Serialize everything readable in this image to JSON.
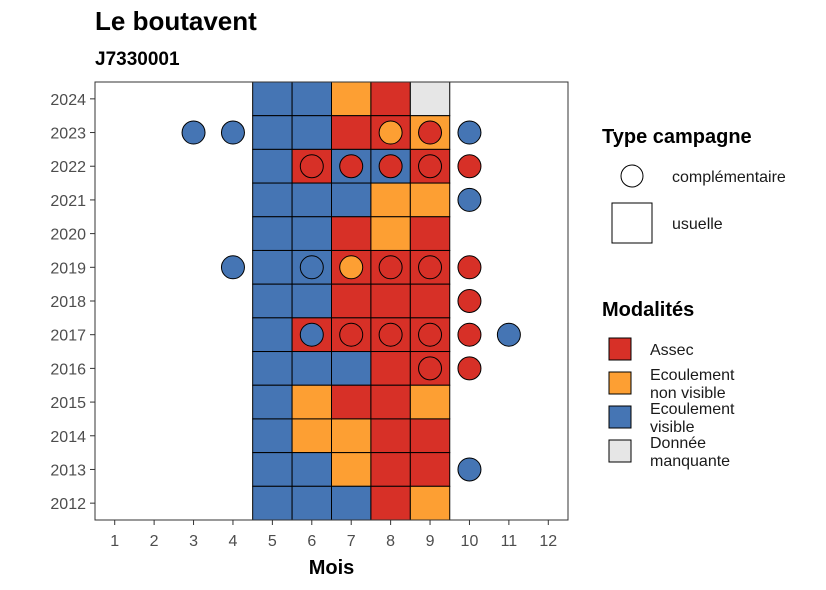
{
  "chart_data": {
    "type": "heatmap",
    "title": "Le boutavent",
    "subtitle": "J7330001",
    "xlabel": "Mois",
    "ylabel": "",
    "x_ticks": [
      1,
      2,
      3,
      4,
      5,
      6,
      7,
      8,
      9,
      10,
      11,
      12
    ],
    "y_ticks": [
      2012,
      2013,
      2014,
      2015,
      2016,
      2017,
      2018,
      2019,
      2020,
      2021,
      2022,
      2023,
      2024
    ],
    "xlim": [
      0.5,
      12.5
    ],
    "ylim": [
      2011.5,
      2024.5
    ],
    "colors": {
      "assec": "#d73027",
      "ecoulement_non_visible": "#fd9f33",
      "ecoulement_visible": "#4575b4",
      "donnee_manquante": "#e6e6e6"
    },
    "legend_campagne": {
      "title": "Type campagne",
      "items": [
        {
          "label": "complémentaire",
          "shape": "circle"
        },
        {
          "label": "usuelle",
          "shape": "square"
        }
      ]
    },
    "legend_modalites": {
      "title": "Modalités",
      "items": [
        {
          "key": "assec",
          "lines": [
            "Assec"
          ]
        },
        {
          "key": "ecoulement_non_visible",
          "lines": [
            "Ecoulement",
            "non visible"
          ]
        },
        {
          "key": "ecoulement_visible",
          "lines": [
            "Ecoulement",
            "visible"
          ]
        },
        {
          "key": "donnee_manquante",
          "lines": [
            "Donnée",
            "manquante"
          ]
        }
      ]
    },
    "usuelle": [
      {
        "year": 2024,
        "months": {
          "5": "ecoulement_visible",
          "6": "ecoulement_visible",
          "7": "ecoulement_non_visible",
          "8": "assec",
          "9": "donnee_manquante"
        }
      },
      {
        "year": 2023,
        "months": {
          "5": "ecoulement_visible",
          "6": "ecoulement_visible",
          "7": "assec",
          "8": "assec",
          "9": "ecoulement_non_visible"
        }
      },
      {
        "year": 2022,
        "months": {
          "5": "ecoulement_visible",
          "6": "assec",
          "7": "ecoulement_visible",
          "8": "ecoulement_visible",
          "9": "assec"
        }
      },
      {
        "year": 2021,
        "months": {
          "5": "ecoulement_visible",
          "6": "ecoulement_visible",
          "7": "ecoulement_visible",
          "8": "ecoulement_non_visible",
          "9": "ecoulement_non_visible"
        }
      },
      {
        "year": 2020,
        "months": {
          "5": "ecoulement_visible",
          "6": "ecoulement_visible",
          "7": "assec",
          "8": "ecoulement_non_visible",
          "9": "assec"
        }
      },
      {
        "year": 2019,
        "months": {
          "5": "ecoulement_visible",
          "6": "ecoulement_visible",
          "7": "assec",
          "8": "assec",
          "9": "assec"
        }
      },
      {
        "year": 2018,
        "months": {
          "5": "ecoulement_visible",
          "6": "ecoulement_visible",
          "7": "assec",
          "8": "assec",
          "9": "assec"
        }
      },
      {
        "year": 2017,
        "months": {
          "5": "ecoulement_visible",
          "6": "assec",
          "7": "assec",
          "8": "assec",
          "9": "assec"
        }
      },
      {
        "year": 2016,
        "months": {
          "5": "ecoulement_visible",
          "6": "ecoulement_visible",
          "7": "ecoulement_visible",
          "8": "assec",
          "9": "assec"
        }
      },
      {
        "year": 2015,
        "months": {
          "5": "ecoulement_visible",
          "6": "ecoulement_non_visible",
          "7": "assec",
          "8": "assec",
          "9": "ecoulement_non_visible"
        }
      },
      {
        "year": 2014,
        "months": {
          "5": "ecoulement_visible",
          "6": "ecoulement_non_visible",
          "7": "ecoulement_non_visible",
          "8": "assec",
          "9": "assec"
        }
      },
      {
        "year": 2013,
        "months": {
          "5": "ecoulement_visible",
          "6": "ecoulement_visible",
          "7": "ecoulement_non_visible",
          "8": "assec",
          "9": "assec"
        }
      },
      {
        "year": 2012,
        "months": {
          "5": "ecoulement_visible",
          "6": "ecoulement_visible",
          "7": "ecoulement_visible",
          "8": "assec",
          "9": "ecoulement_non_visible"
        }
      }
    ],
    "complementaire": [
      {
        "year": 2023,
        "month": 3,
        "key": "ecoulement_visible"
      },
      {
        "year": 2023,
        "month": 4,
        "key": "ecoulement_visible"
      },
      {
        "year": 2023,
        "month": 8,
        "key": "ecoulement_non_visible"
      },
      {
        "year": 2023,
        "month": 9,
        "key": "assec"
      },
      {
        "year": 2023,
        "month": 10,
        "key": "ecoulement_visible"
      },
      {
        "year": 2022,
        "month": 6,
        "key": "assec"
      },
      {
        "year": 2022,
        "month": 7,
        "key": "assec"
      },
      {
        "year": 2022,
        "month": 8,
        "key": "assec"
      },
      {
        "year": 2022,
        "month": 9,
        "key": "assec"
      },
      {
        "year": 2022,
        "month": 10,
        "key": "assec"
      },
      {
        "year": 2021,
        "month": 10,
        "key": "ecoulement_visible"
      },
      {
        "year": 2019,
        "month": 4,
        "key": "ecoulement_visible"
      },
      {
        "year": 2019,
        "month": 6,
        "key": "ecoulement_visible"
      },
      {
        "year": 2019,
        "month": 7,
        "key": "ecoulement_non_visible"
      },
      {
        "year": 2019,
        "month": 8,
        "key": "assec"
      },
      {
        "year": 2019,
        "month": 9,
        "key": "assec"
      },
      {
        "year": 2019,
        "month": 10,
        "key": "assec"
      },
      {
        "year": 2018,
        "month": 10,
        "key": "assec"
      },
      {
        "year": 2017,
        "month": 6,
        "key": "ecoulement_visible"
      },
      {
        "year": 2017,
        "month": 7,
        "key": "assec"
      },
      {
        "year": 2017,
        "month": 8,
        "key": "assec"
      },
      {
        "year": 2017,
        "month": 9,
        "key": "assec"
      },
      {
        "year": 2017,
        "month": 10,
        "key": "assec"
      },
      {
        "year": 2017,
        "month": 11,
        "key": "ecoulement_visible"
      },
      {
        "year": 2016,
        "month": 9,
        "key": "assec"
      },
      {
        "year": 2016,
        "month": 10,
        "key": "assec"
      },
      {
        "year": 2013,
        "month": 10,
        "key": "ecoulement_visible"
      }
    ]
  }
}
